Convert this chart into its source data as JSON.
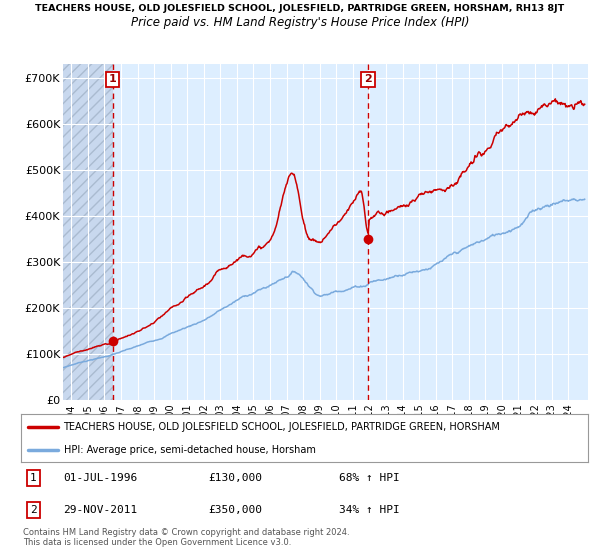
{
  "title_top": "TEACHERS HOUSE, OLD JOLESFIELD SCHOOL, JOLESFIELD, PARTRIDGE GREEN, HORSHAM, RH13 8JT",
  "title_sub": "Price paid vs. HM Land Registry's House Price Index (HPI)",
  "ylabel_ticks": [
    "£0",
    "£100K",
    "£200K",
    "£300K",
    "£400K",
    "£500K",
    "£600K",
    "£700K"
  ],
  "ytick_vals": [
    0,
    100000,
    200000,
    300000,
    400000,
    500000,
    600000,
    700000
  ],
  "ylim": [
    0,
    730000
  ],
  "xlim_start": 1993.5,
  "xlim_end": 2025.2,
  "background_color": "#ddeeff",
  "grid_color": "#ffffff",
  "red_line_color": "#cc0000",
  "blue_line_color": "#7aaadd",
  "sale1_date_num": 1996.5,
  "sale1_price": 130000,
  "sale1_label": "01-JUL-1996",
  "sale1_price_label": "£130,000",
  "sale1_hpi": "68% ↑ HPI",
  "sale2_date_num": 2011.92,
  "sale2_price": 350000,
  "sale2_label": "29-NOV-2011",
  "sale2_price_label": "£350,000",
  "sale2_hpi": "34% ↑ HPI",
  "legend_red": "TEACHERS HOUSE, OLD JOLESFIELD SCHOOL, JOLESFIELD, PARTRIDGE GREEN, HORSHAM",
  "legend_blue": "HPI: Average price, semi-detached house, Horsham",
  "footnote": "Contains HM Land Registry data © Crown copyright and database right 2024.\nThis data is licensed under the Open Government Licence v3.0.",
  "xtick_years": [
    1994,
    1995,
    1996,
    1997,
    1998,
    1999,
    2000,
    2001,
    2002,
    2003,
    2004,
    2005,
    2006,
    2007,
    2008,
    2009,
    2010,
    2011,
    2012,
    2013,
    2014,
    2015,
    2016,
    2017,
    2018,
    2019,
    2020,
    2021,
    2022,
    2023,
    2024
  ],
  "hpi_waypoints_x": [
    1994,
    1995,
    1996,
    1997,
    1998,
    1999,
    2000,
    2001,
    2002,
    2003,
    2004,
    2005,
    2006,
    2007,
    2007.5,
    2008,
    2008.5,
    2009,
    2009.5,
    2010,
    2011,
    2011.92,
    2012,
    2013,
    2014,
    2015,
    2016,
    2017,
    2018,
    2019,
    2020,
    2021,
    2022,
    2023,
    2024,
    2025
  ],
  "hpi_waypoints_y": [
    72000,
    82000,
    90000,
    100000,
    110000,
    122000,
    138000,
    152000,
    168000,
    188000,
    208000,
    225000,
    240000,
    262000,
    272000,
    260000,
    240000,
    228000,
    230000,
    238000,
    250000,
    260000,
    265000,
    272000,
    288000,
    300000,
    315000,
    330000,
    345000,
    360000,
    375000,
    400000,
    435000,
    455000,
    465000,
    470000
  ],
  "red_waypoints_x": [
    1994,
    1995,
    1996,
    1996.5,
    1997,
    1998,
    1999,
    2000,
    2001,
    2002,
    2003,
    2004,
    2005,
    2006,
    2007,
    2007.3,
    2007.6,
    2008,
    2008.5,
    2009,
    2009.5,
    2010,
    2011,
    2011.5,
    2011.92,
    2012,
    2013,
    2014,
    2015,
    2016,
    2017,
    2018,
    2019,
    2020,
    2021,
    2022,
    2022.5,
    2023,
    2023.5,
    2024,
    2025
  ],
  "red_waypoints_y": [
    105000,
    118000,
    126000,
    130000,
    142000,
    157000,
    176000,
    200000,
    218000,
    240000,
    270000,
    300000,
    325000,
    345000,
    460000,
    480000,
    465000,
    390000,
    350000,
    345000,
    365000,
    385000,
    420000,
    440000,
    350000,
    380000,
    400000,
    415000,
    435000,
    455000,
    480000,
    510000,
    540000,
    565000,
    590000,
    620000,
    640000,
    650000,
    660000,
    640000,
    645000
  ]
}
